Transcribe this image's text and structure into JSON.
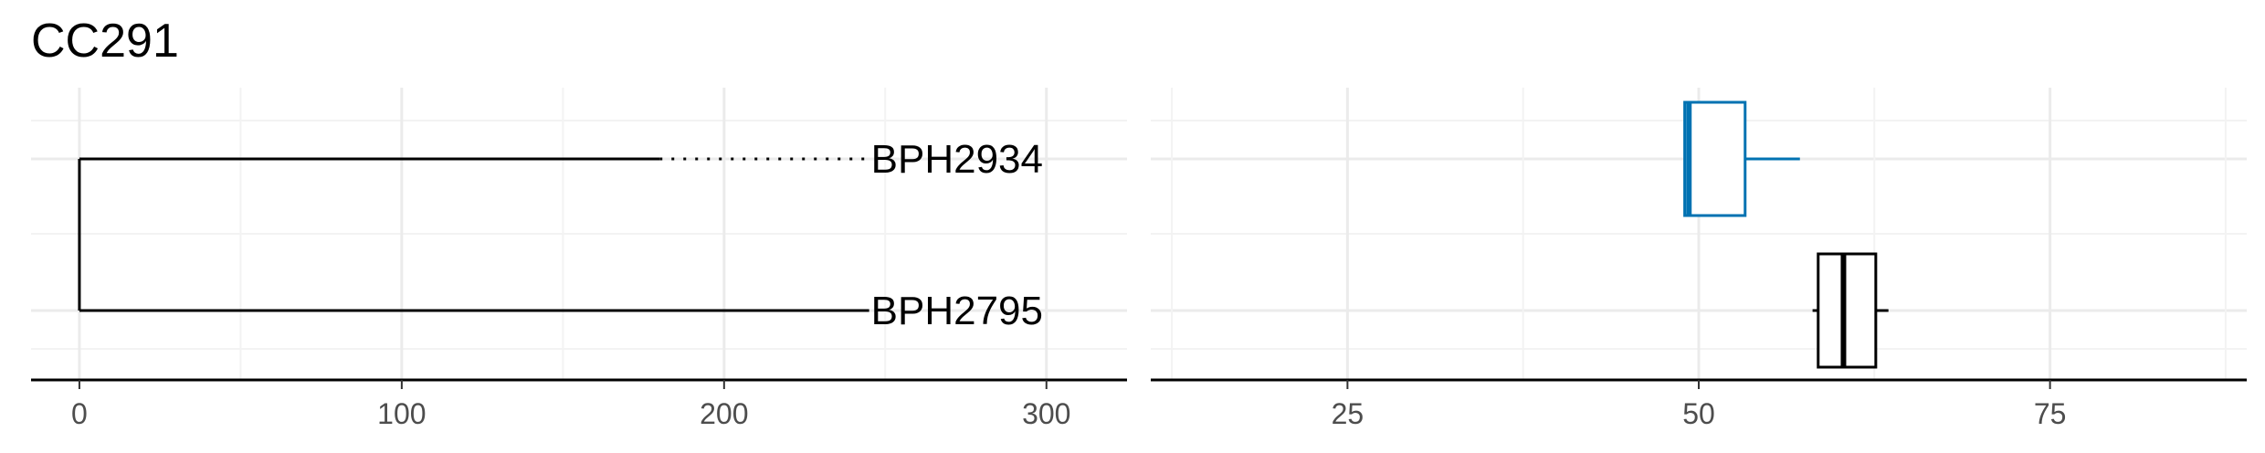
{
  "chart_data": [
    {
      "type": "tree",
      "title": "CC291",
      "xlim": [
        -15,
        325
      ],
      "x_ticks": [
        0,
        100,
        200,
        300
      ],
      "x_tick_labels": [
        "0",
        "100",
        "200",
        "300"
      ],
      "grid": true,
      "tips": [
        {
          "label": "BPH2934",
          "branch_length": 180,
          "dotted_to": 245
        },
        {
          "label": "BPH2795",
          "branch_length": 245
        }
      ]
    },
    {
      "type": "box",
      "xlim": [
        11,
        89
      ],
      "x_ticks": [
        25,
        50,
        75
      ],
      "x_tick_labels": [
        "25",
        "50",
        "75"
      ],
      "grid": true,
      "boxes": [
        {
          "row": "BPH2934",
          "color": "#0072b2",
          "min": 49,
          "q1": 49,
          "median": 49.3,
          "q3": 53.3,
          "max": 57.2
        },
        {
          "row": "BPH2795",
          "color": "#000000",
          "min": 58.1,
          "q1": 58.5,
          "median": 60.3,
          "q3": 62.6,
          "max": 63.5
        }
      ]
    }
  ]
}
